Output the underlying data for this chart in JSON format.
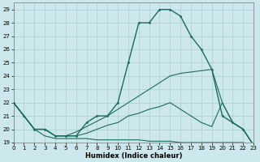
{
  "xlabel": "Humidex (Indice chaleur)",
  "xlim": [
    0,
    23
  ],
  "ylim": [
    19,
    29.5
  ],
  "yticks": [
    19,
    20,
    21,
    22,
    23,
    24,
    25,
    26,
    27,
    28,
    29
  ],
  "xticks": [
    0,
    1,
    2,
    3,
    4,
    5,
    6,
    7,
    8,
    9,
    10,
    11,
    12,
    13,
    14,
    15,
    16,
    17,
    18,
    19,
    20,
    21,
    22,
    23
  ],
  "bg_color": "#cde8ec",
  "grid_color": "#aacccc",
  "line_color": "#1a6b60",
  "series": [
    {
      "x": [
        0,
        1,
        2,
        3,
        4,
        5,
        6,
        7,
        8,
        9,
        10,
        11,
        12,
        13,
        14,
        15,
        16,
        17,
        18,
        19,
        20,
        21,
        22,
        23
      ],
      "y": [
        22,
        21,
        20,
        20,
        19.5,
        19.5,
        19.5,
        20.5,
        21,
        21,
        22,
        25,
        28,
        28,
        29,
        29,
        28.5,
        27,
        26,
        24.5,
        21,
        20.5,
        20,
        18.8
      ],
      "marker": true,
      "lw": 1.0
    },
    {
      "x": [
        0,
        1,
        2,
        3,
        4,
        5,
        6,
        7,
        8,
        9,
        10,
        11,
        12,
        13,
        14,
        15,
        16,
        17,
        18,
        19,
        20,
        21,
        22,
        23
      ],
      "y": [
        22,
        21,
        20,
        19.5,
        19.3,
        19.3,
        19.3,
        19.3,
        19.2,
        19.2,
        19.2,
        19.2,
        19.2,
        19.1,
        19.1,
        19.1,
        19.0,
        19.0,
        19.0,
        19.0,
        19.0,
        19.0,
        19.0,
        18.8
      ],
      "marker": false,
      "lw": 0.8
    },
    {
      "x": [
        0,
        1,
        2,
        3,
        4,
        5,
        6,
        7,
        8,
        9,
        10,
        11,
        12,
        13,
        14,
        15,
        16,
        17,
        18,
        19,
        20,
        21,
        22,
        23
      ],
      "y": [
        22,
        21,
        20,
        20,
        19.5,
        19.5,
        19.8,
        20.2,
        20.6,
        21.0,
        21.5,
        22.0,
        22.5,
        23.0,
        23.5,
        24.0,
        24.2,
        24.3,
        24.4,
        24.5,
        22.0,
        20.5,
        20.0,
        18.8
      ],
      "marker": false,
      "lw": 0.8
    },
    {
      "x": [
        0,
        1,
        2,
        3,
        4,
        5,
        6,
        7,
        8,
        9,
        10,
        11,
        12,
        13,
        14,
        15,
        16,
        17,
        18,
        19,
        20,
        21,
        22,
        23
      ],
      "y": [
        22,
        21,
        20,
        20,
        19.5,
        19.5,
        19.5,
        19.7,
        20.0,
        20.3,
        20.5,
        21.0,
        21.2,
        21.5,
        21.7,
        22.0,
        21.5,
        21.0,
        20.5,
        20.2,
        22.0,
        20.5,
        20.0,
        18.8
      ],
      "marker": false,
      "lw": 0.8
    }
  ]
}
